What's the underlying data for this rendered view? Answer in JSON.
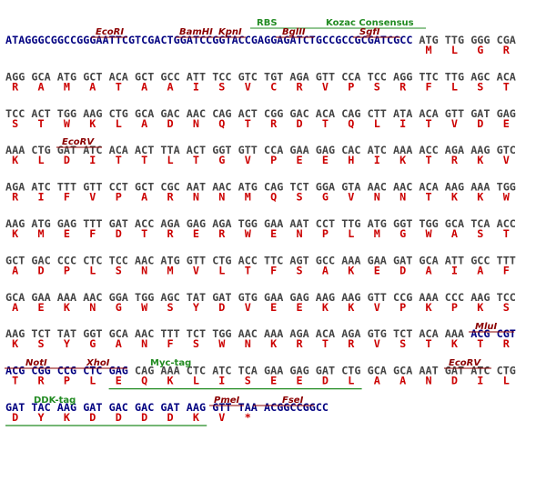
{
  "lines": [
    {
      "prefix": "ATAGGGCGGCCGGGAATTCGTCGACTGGATCCGGTACCGAGGAGATCTGCCGCCGCGATCGCC",
      "codons": [
        "ATG",
        "TTG",
        "GGG",
        "CGA"
      ],
      "aminos": [
        "M",
        "L",
        "G",
        "R"
      ],
      "labels": [
        "RBS",
        "Kozac Consensus",
        "EcoRI",
        "BamHI",
        "KpnI",
        "BglII",
        "SgfI"
      ]
    },
    {
      "codons": [
        "AGG",
        "GCA",
        "ATG",
        "GCT",
        "ACA",
        "GCT",
        "GCC",
        "ATT",
        "TCC",
        "GTC",
        "TGT",
        "AGA",
        "GTT",
        "CCA",
        "TCC",
        "AGG",
        "TTC",
        "TTG",
        "AGC",
        "ACA"
      ],
      "aminos": [
        "R",
        "A",
        "M",
        "A",
        "T",
        "A",
        "A",
        "I",
        "S",
        "V",
        "C",
        "R",
        "V",
        "P",
        "S",
        "R",
        "F",
        "L",
        "S",
        "T"
      ]
    },
    {
      "codons": [
        "TCC",
        "ACT",
        "TGG",
        "AAG",
        "CTG",
        "GCA",
        "GAC",
        "AAC",
        "CAG",
        "ACT",
        "CGG",
        "GAC",
        "ACA",
        "CAG",
        "CTT",
        "ATA",
        "ACA",
        "GTT",
        "GAT",
        "GAG"
      ],
      "aminos": [
        "S",
        "T",
        "W",
        "K",
        "L",
        "A",
        "D",
        "N",
        "Q",
        "T",
        "R",
        "D",
        "T",
        "Q",
        "L",
        "I",
        "T",
        "V",
        "D",
        "E"
      ]
    },
    {
      "codons": [
        "AAA",
        "CTG",
        "GAT",
        "ATC",
        "ACA",
        "ACT",
        "TTA",
        "ACT",
        "GGT",
        "GTT",
        "CCA",
        "GAA",
        "GAG",
        "CAC",
        "ATC",
        "AAA",
        "ACC",
        "AGA",
        "AAG",
        "GTC"
      ],
      "aminos": [
        "K",
        "L",
        "D",
        "I",
        "T",
        "T",
        "L",
        "T",
        "G",
        "V",
        "P",
        "E",
        "E",
        "H",
        "I",
        "K",
        "T",
        "R",
        "K",
        "V"
      ],
      "labels": [
        "EcoRV"
      ]
    },
    {
      "codons": [
        "AGA",
        "ATC",
        "TTT",
        "GTT",
        "CCT",
        "GCT",
        "CGC",
        "AAT",
        "AAC",
        "ATG",
        "CAG",
        "TCT",
        "GGA",
        "GTA",
        "AAC",
        "AAC",
        "ACA",
        "AAG",
        "AAA",
        "TGG"
      ],
      "aminos": [
        "R",
        "I",
        "F",
        "V",
        "P",
        "A",
        "R",
        "N",
        "N",
        "M",
        "Q",
        "S",
        "G",
        "V",
        "N",
        "N",
        "T",
        "K",
        "K",
        "W"
      ]
    },
    {
      "codons": [
        "AAG",
        "ATG",
        "GAG",
        "TTT",
        "GAT",
        "ACC",
        "AGA",
        "GAG",
        "AGA",
        "TGG",
        "GAA",
        "AAT",
        "CCT",
        "TTG",
        "ATG",
        "GGT",
        "TGG",
        "GCA",
        "TCA",
        "ACC"
      ],
      "aminos": [
        "K",
        "M",
        "E",
        "F",
        "D",
        "T",
        "R",
        "E",
        "R",
        "W",
        "E",
        "N",
        "P",
        "L",
        "M",
        "G",
        "W",
        "A",
        "S",
        "T"
      ]
    },
    {
      "codons": [
        "GCT",
        "GAC",
        "CCC",
        "CTC",
        "TCC",
        "AAC",
        "ATG",
        "GTT",
        "CTG",
        "ACC",
        "TTC",
        "AGT",
        "GCC",
        "AAA",
        "GAA",
        "GAT",
        "GCA",
        "ATT",
        "GCC",
        "TTT"
      ],
      "aminos": [
        "A",
        "D",
        "P",
        "L",
        "S",
        "N",
        "M",
        "V",
        "L",
        "T",
        "F",
        "S",
        "A",
        "K",
        "E",
        "D",
        "A",
        "I",
        "A",
        "F"
      ]
    },
    {
      "codons": [
        "GCA",
        "GAA",
        "AAA",
        "AAC",
        "GGA",
        "TGG",
        "AGC",
        "TAT",
        "GAT",
        "GTG",
        "GAA",
        "GAG",
        "AAG",
        "AAG",
        "GTT",
        "CCG",
        "AAA",
        "CCC",
        "AAG",
        "TCC"
      ],
      "aminos": [
        "A",
        "E",
        "K",
        "N",
        "G",
        "W",
        "S",
        "Y",
        "D",
        "V",
        "E",
        "E",
        "K",
        "K",
        "V",
        "P",
        "K",
        "P",
        "K",
        "S"
      ]
    },
    {
      "codons": [
        "AAG",
        "TCT",
        "TAT",
        "GGT",
        "GCA",
        "AAC",
        "TTT",
        "TCT",
        "TGG",
        "AAC",
        "AAA",
        "AGA",
        "ACA",
        "AGA",
        "GTG",
        "TCT",
        "ACA",
        "AAA",
        "ACG",
        "CGT"
      ],
      "aminos": [
        "K",
        "S",
        "Y",
        "G",
        "A",
        "N",
        "F",
        "S",
        "W",
        "N",
        "K",
        "R",
        "T",
        "R",
        "V",
        "S",
        "T",
        "K",
        "T",
        "R"
      ],
      "labels": [
        "MluI"
      ]
    },
    {
      "codons": [
        "ACG",
        "CGG",
        "CCG",
        "CTC",
        "GAG",
        "CAG",
        "AAA",
        "CTC",
        "ATC",
        "TCA",
        "GAA",
        "GAG",
        "GAT",
        "CTG",
        "GCA",
        "GCA",
        "AAT",
        "GAT",
        "ATC",
        "CTG"
      ],
      "aminos": [
        "T",
        "R",
        "P",
        "L",
        "E",
        "Q",
        "K",
        "L",
        "I",
        "S",
        "E",
        "E",
        "D",
        "L",
        "A",
        "A",
        "N",
        "D",
        "I",
        "L"
      ],
      "labels": [
        "NotI",
        "XhoI",
        "Myc-tag",
        "EcoRV"
      ]
    },
    {
      "codons": [
        "GAT",
        "TAC",
        "AAG",
        "GAT",
        "GAC",
        "GAC",
        "GAT",
        "AAG",
        "GTT",
        "TAA"
      ],
      "aminos": [
        "D",
        "Y",
        "K",
        "D",
        "D",
        "D",
        "D",
        "K",
        "V",
        "*"
      ],
      "suffix": "ACGGCCGGCC",
      "labels": [
        "DDK-tag",
        "PmeI",
        "FseI"
      ]
    }
  ]
}
